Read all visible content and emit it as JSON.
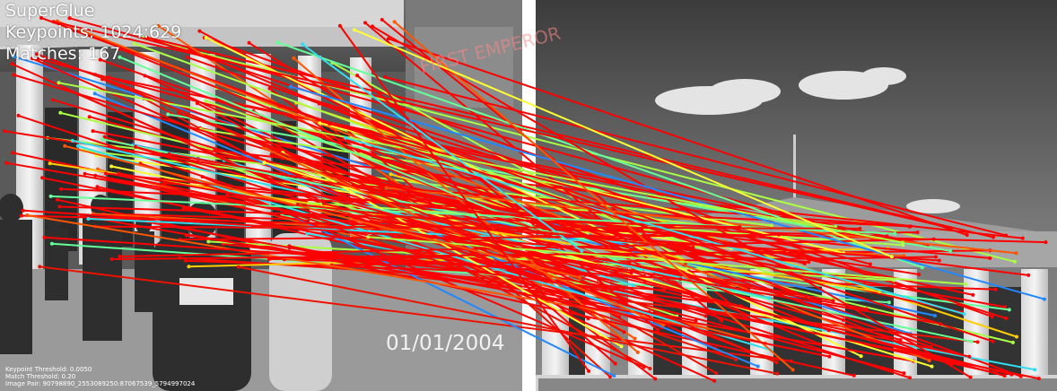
{
  "title": "SuperGlue",
  "keypoints_line": "Keypoints: 1024:629",
  "matches_line": "Matches: 167",
  "footer": {
    "keypoint_threshold": "Keypoint Threshold: 0.0050",
    "match_threshold": "Match Threshold: 0.20",
    "image_pair": "Image Pair: 90798890_2553089250:87067539_5794997024"
  },
  "photo_date_stamp": "01/01/2004",
  "building_sign_text": "FIRST EMPEROR",
  "match_colors": [
    "#ff0000",
    "#ee1100",
    "#ff5500",
    "#ffcc00",
    "#ffff33",
    "#aaff44",
    "#66ff99",
    "#33ddee",
    "#2288ff"
  ]
}
